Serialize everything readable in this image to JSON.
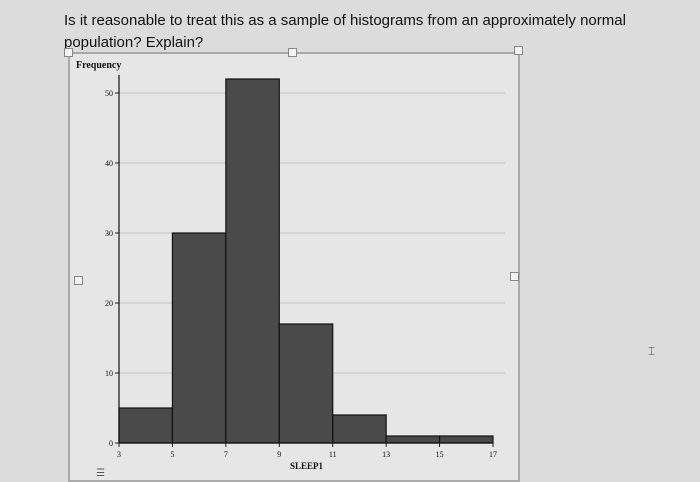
{
  "question": "Is it reasonable to treat this as a sample of histograms from an approximately normal population? Explain?",
  "chart_data": {
    "type": "bar",
    "histogram": true,
    "bin_edges": [
      3,
      5,
      7,
      9,
      11,
      13,
      15,
      17
    ],
    "values": [
      5,
      30,
      52,
      17,
      4,
      1,
      1
    ],
    "xlabel": "SLEEP1",
    "ylabel": "Frequency",
    "xticks": [
      "3",
      "5",
      "7",
      "9",
      "11",
      "13",
      "15",
      "17"
    ],
    "yticks": [
      "0",
      "10",
      "20",
      "30",
      "40",
      "50"
    ],
    "ylim": [
      0,
      55
    ],
    "xlim": [
      3,
      17
    ],
    "grid": "horizontal",
    "bar_color": "#4a4a4a"
  }
}
